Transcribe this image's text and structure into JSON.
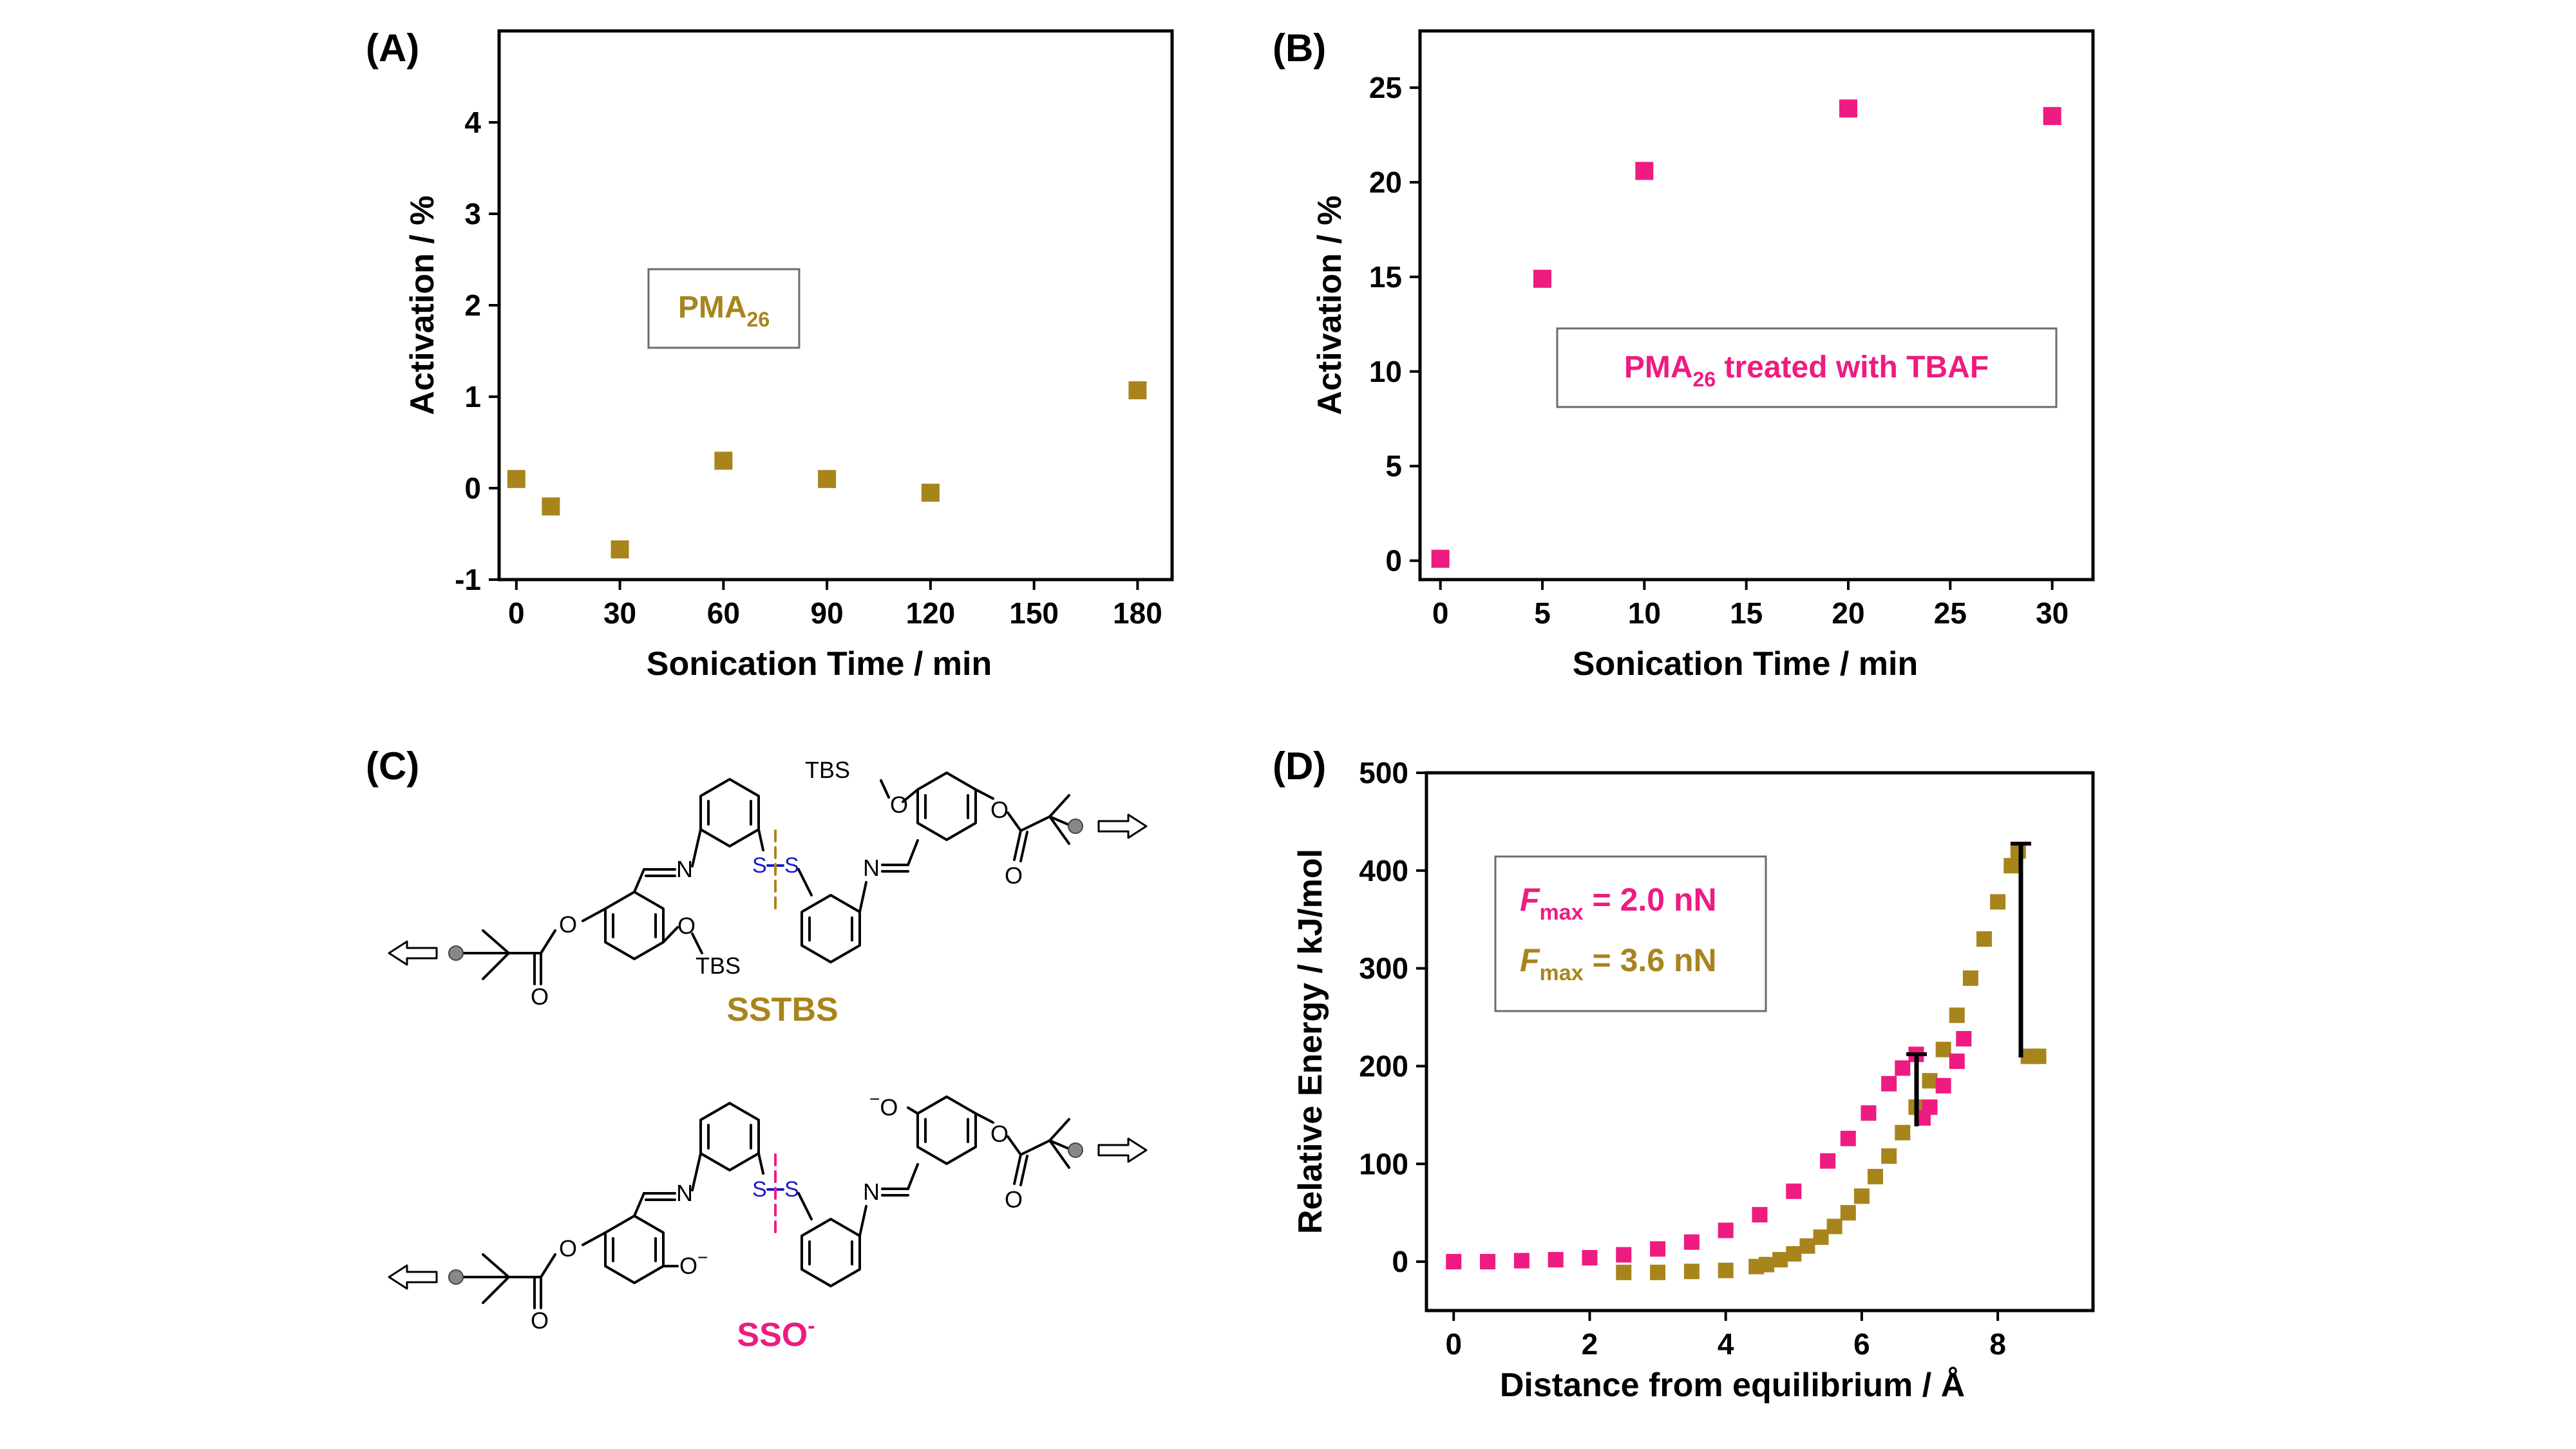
{
  "colors": {
    "gold": "#A8841C",
    "pink": "#EE1B81",
    "blue": "#1A1AC8",
    "axis": "#000000"
  },
  "chart_data": [
    {
      "panel": "(A)",
      "type": "scatter",
      "xlabel": "Sonication Time / min",
      "ylabel": "Activation / %",
      "xlim": [
        -5,
        190
      ],
      "ylim": [
        -1,
        5
      ],
      "xticks": [
        "0",
        "30",
        "60",
        "90",
        "120",
        "150",
        "180"
      ],
      "yticks": [
        "-1",
        "0",
        "1",
        "2",
        "3",
        "4"
      ],
      "legend": {
        "main": "PMA",
        "sub": "26",
        "rest": ""
      },
      "series": [
        {
          "color": "gold",
          "x": [
            0,
            10,
            30,
            60,
            90,
            120,
            180
          ],
          "y": [
            0.1,
            -0.2,
            -0.67,
            0.3,
            0.1,
            -0.05,
            1.07
          ]
        }
      ]
    },
    {
      "panel": "(B)",
      "type": "scatter",
      "xlabel": "Sonication Time / min",
      "ylabel": "Activation / %",
      "xlim": [
        -1,
        32
      ],
      "ylim": [
        -1,
        28
      ],
      "xticks": [
        "0",
        "5",
        "10",
        "15",
        "20",
        "25",
        "30"
      ],
      "yticks": [
        "0",
        "5",
        "10",
        "15",
        "20",
        "25"
      ],
      "legend": {
        "main": "PMA",
        "sub": "26",
        "rest": " treated with TBAF"
      },
      "series": [
        {
          "color": "pink",
          "x": [
            0,
            5,
            10,
            20,
            30
          ],
          "y": [
            0.1,
            14.9,
            20.6,
            23.9,
            23.5
          ]
        }
      ]
    },
    {
      "panel": "(D)",
      "type": "scatter",
      "xlabel": "Distance from equilibrium / Å",
      "ylabel": "Relative Energy / kJ/mol",
      "xlim": [
        -0.4,
        9.4
      ],
      "ylim": [
        -50,
        500
      ],
      "xticks": [
        "0",
        "2",
        "4",
        "6",
        "8"
      ],
      "yticks": [
        "0",
        "100",
        "200",
        "300",
        "400",
        "500"
      ],
      "legend_entries": [
        {
          "label": "F",
          "sub": "max",
          "value": " = 2.0 nN",
          "color": "pink"
        },
        {
          "label": "F",
          "sub": "max",
          "value": " = 3.6 nN",
          "color": "gold"
        }
      ],
      "series": [
        {
          "color": "gold",
          "x": [
            2.5,
            3.0,
            3.5,
            4.0,
            4.45,
            4.6,
            4.8,
            5.0,
            5.2,
            5.4,
            5.6,
            5.8,
            6.0,
            6.2,
            6.4,
            6.6,
            6.8,
            7.0,
            7.2,
            7.4,
            7.6,
            7.8,
            8.0,
            8.2,
            8.3,
            8.45,
            8.6
          ],
          "y": [
            -11,
            -11,
            -10,
            -9,
            -5,
            -3,
            2,
            8,
            16,
            25,
            36,
            50,
            67,
            87,
            108,
            132,
            158,
            185,
            217,
            252,
            290,
            330,
            368,
            405,
            420,
            210,
            210
          ]
        },
        {
          "color": "pink",
          "x": [
            0.0,
            0.5,
            1.0,
            1.5,
            2.0,
            2.5,
            3.0,
            3.5,
            4.0,
            4.5,
            5.0,
            5.5,
            5.8,
            6.1,
            6.4,
            6.6,
            6.8,
            6.9,
            7.0,
            7.2,
            7.4,
            7.5
          ],
          "y": [
            0,
            0,
            1,
            2,
            4,
            7,
            13,
            20,
            32,
            48,
            72,
            103,
            126,
            152,
            182,
            198,
            212,
            147,
            158,
            180,
            205,
            228
          ]
        }
      ]
    }
  ],
  "panelC": {
    "label": "(C)",
    "mol1_name": "SSTBS",
    "mol2_name": "SSO",
    "mol2_charge": "-",
    "tbs": "TBS",
    "o": "O",
    "n": "N",
    "s": "S",
    "o_minus": "O",
    "minus": "−"
  }
}
